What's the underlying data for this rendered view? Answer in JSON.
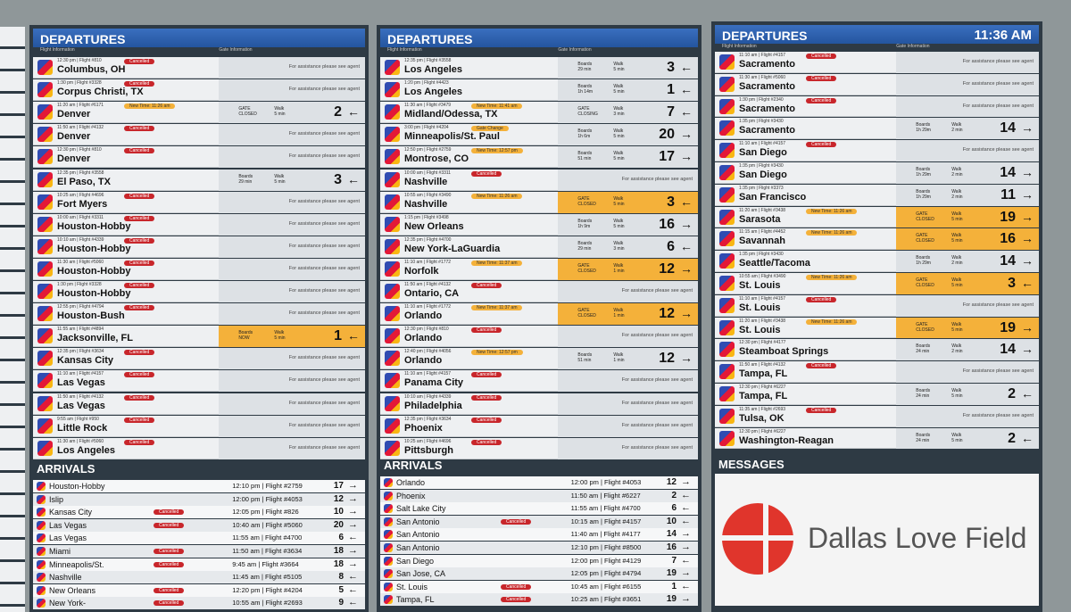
{
  "boards": [
    {
      "departures": {
        "title": "DEPARTURES",
        "flight_info_label": "Flight Information",
        "gate_info_label": "Gate Information",
        "rows": [
          {
            "t": "12:30 pm | Flight #810",
            "c": "Columbus, OH",
            "tag": "Cancelled",
            "note": "For assistance please see agent"
          },
          {
            "t": "1:30 pm | Flight #3328",
            "c": "Corpus Christi, TX",
            "tag": "Cancelled",
            "note": "For assistance please see agent"
          },
          {
            "t": "11:20 am | Flight #6171",
            "c": "Denver",
            "tag": "New Time: 11:26 am",
            "b1": "GATE",
            "b2": "CLOSED",
            "w1": "Walk",
            "w2": "5 min",
            "g": "2",
            "a": "←"
          },
          {
            "t": "11:50 am | Flight #4132",
            "c": "Denver",
            "tag": "Cancelled",
            "note": "For assistance please see agent"
          },
          {
            "t": "12:30 pm | Flight #810",
            "c": "Denver",
            "tag": "Cancelled",
            "note": "For assistance please see agent"
          },
          {
            "t": "12:35 pm | Flight #3558",
            "c": "El Paso, TX",
            "b1": "Boards",
            "b2": "29 min",
            "w1": "Walk",
            "w2": "5 min",
            "g": "3",
            "a": "←"
          },
          {
            "t": "10:25 am | Flight #4696",
            "c": "Fort Myers",
            "tag": "Cancelled",
            "note": "For assistance please see agent"
          },
          {
            "t": "10:00 am | Flight #3311",
            "c": "Houston-Hobby",
            "tag": "Cancelled",
            "note": "For assistance please see agent"
          },
          {
            "t": "10:10 am | Flight #4339",
            "c": "Houston-Hobby",
            "tag": "Cancelled",
            "note": "For assistance please see agent"
          },
          {
            "t": "11:30 am | Flight #5060",
            "c": "Houston-Hobby",
            "tag": "Cancelled",
            "note": "For assistance please see agent"
          },
          {
            "t": "1:30 pm | Flight #3328",
            "c": "Houston-Hobby",
            "tag": "Cancelled",
            "note": "For assistance please see agent"
          },
          {
            "t": "12:55 pm | Flight #4794",
            "c": "Houston-Bush",
            "tag": "Cancelled",
            "note": "For assistance please see agent"
          },
          {
            "t": "11:55 am | Flight #4894",
            "c": "Jacksonville, FL",
            "b1": "Boards",
            "b2": "NOW",
            "w1": "Walk",
            "w2": "5 min",
            "g": "1",
            "a": "←",
            "hl": true
          },
          {
            "t": "12:35 pm | Flight #3634",
            "c": "Kansas City",
            "tag": "Cancelled",
            "note": "For assistance please see agent"
          },
          {
            "t": "11:10 am | Flight #4157",
            "c": "Las Vegas",
            "tag": "Cancelled",
            "note": "For assistance please see agent"
          },
          {
            "t": "11:50 am | Flight #4132",
            "c": "Las Vegas",
            "tag": "Cancelled",
            "note": "For assistance please see agent"
          },
          {
            "t": "9:55 am | Flight #950",
            "c": "Little Rock",
            "tag": "Cancelled",
            "note": "For assistance please see agent"
          },
          {
            "t": "11:30 am | Flight #5060",
            "c": "Los Angeles",
            "tag": "Cancelled",
            "note": "For assistance please see agent"
          }
        ]
      },
      "arrivals": {
        "title": "ARRIVALS",
        "rows": [
          {
            "c": "Houston-Hobby",
            "t": "12:10 pm | Flight #2759",
            "g": "17",
            "a": "→"
          },
          {
            "c": "Islip",
            "t": "12:00 pm | Flight #4053",
            "g": "12",
            "a": "→"
          },
          {
            "c": "Kansas City",
            "tag": "Cancelled",
            "t": "12:05 pm | Flight #826",
            "g": "10",
            "a": "→"
          },
          {
            "c": "Las Vegas",
            "tag": "Cancelled",
            "t": "10:40 am | Flight #5060",
            "g": "20",
            "a": "→"
          },
          {
            "c": "Las Vegas",
            "t": "11:55 am | Flight #4700",
            "g": "6",
            "a": "←"
          },
          {
            "c": "Miami",
            "tag": "Cancelled",
            "t": "11:50 am | Flight #3634",
            "g": "18",
            "a": "→"
          },
          {
            "c": "Minneapolis/St.",
            "tag": "Cancelled",
            "t": "9:45 am | Flight #3664",
            "g": "18",
            "a": "→"
          },
          {
            "c": "Nashville",
            "t": "11:45 am | Flight #5105",
            "g": "8",
            "a": "←"
          },
          {
            "c": "New Orleans",
            "tag": "Cancelled",
            "t": "12:20 pm | Flight #4204",
            "g": "5",
            "a": "←"
          },
          {
            "c": "New York-",
            "tag": "Cancelled",
            "t": "10:55 am | Flight #2693",
            "g": "9",
            "a": "←"
          }
        ]
      }
    },
    {
      "departures": {
        "title": "DEPARTURES",
        "flight_info_label": "Flight Information",
        "gate_info_label": "Gate Information",
        "rows": [
          {
            "t": "12:35 pm | Flight #3558",
            "c": "Los Angeles",
            "b1": "Boards",
            "b2": "29 min",
            "w1": "Walk",
            "w2": "5 min",
            "g": "3",
            "a": "←"
          },
          {
            "t": "1:20 pm | Flight #4423",
            "c": "Los Angeles",
            "b1": "Boards",
            "b2": "1h 14m",
            "w1": "Walk",
            "w2": "5 min",
            "g": "1",
            "a": "←"
          },
          {
            "t": "11:30 am | Flight #3479",
            "c": "Midland/Odessa, TX",
            "tag": "New Time: 11:41 am",
            "b1": "GATE",
            "b2": "CLOSING",
            "w1": "Walk",
            "w2": "3 min",
            "g": "7",
            "a": "←"
          },
          {
            "t": "3:00 pm | Flight #4204",
            "c": "Minneapolis/St. Paul",
            "tag": "Gate Change",
            "b1": "Boards",
            "b2": "1h 6m",
            "w1": "Walk",
            "w2": "5 min",
            "g": "20",
            "a": "→"
          },
          {
            "t": "12:50 pm | Flight #2759",
            "c": "Montrose, CO",
            "tag": "New Time: 12:57 pm",
            "b1": "Boards",
            "b2": "51 min",
            "w1": "Walk",
            "w2": "5 min",
            "g": "17",
            "a": "→"
          },
          {
            "t": "10:00 am | Flight #3311",
            "c": "Nashville",
            "tag": "Cancelled",
            "note": "For assistance please see agent"
          },
          {
            "t": "10:55 am | Flight #3490",
            "c": "Nashville",
            "tag": "New Time: 11:26 am",
            "b1": "GATE",
            "b2": "CLOSED",
            "w1": "Walk",
            "w2": "5 min",
            "g": "3",
            "a": "←",
            "hl": true
          },
          {
            "t": "1:15 pm | Flight #3498",
            "c": "New Orleans",
            "b1": "Boards",
            "b2": "1h 9m",
            "w1": "Walk",
            "w2": "5 min",
            "g": "16",
            "a": "→"
          },
          {
            "t": "12:35 pm | Flight #4700",
            "c": "New York-LaGuardia",
            "b1": "Boards",
            "b2": "29 min",
            "w1": "Walk",
            "w2": "3 min",
            "g": "6",
            "a": "←"
          },
          {
            "t": "11:10 am | Flight #1772",
            "c": "Norfolk",
            "tag": "New Time: 11:37 am",
            "b1": "GATE",
            "b2": "CLOSED",
            "w1": "Walk",
            "w2": "1 min",
            "g": "12",
            "a": "→",
            "hl": true
          },
          {
            "t": "11:50 am | Flight #4132",
            "c": "Ontario, CA",
            "tag": "Cancelled",
            "note": "For assistance please see agent"
          },
          {
            "t": "11:10 am | Flight #1772",
            "c": "Orlando",
            "tag": "New Time: 11:37 am",
            "b1": "GATE",
            "b2": "CLOSED",
            "w1": "Walk",
            "w2": "1 min",
            "g": "12",
            "a": "→",
            "hl": true
          },
          {
            "t": "12:30 pm | Flight #810",
            "c": "Orlando",
            "tag": "Cancelled",
            "note": "For assistance please see agent"
          },
          {
            "t": "12:40 pm | Flight #4056",
            "c": "Orlando",
            "tag": "New Time: 12:57 pm",
            "b1": "Boards",
            "b2": "51 min",
            "w1": "Walk",
            "w2": "1 min",
            "g": "12",
            "a": "→"
          },
          {
            "t": "11:10 am | Flight #4157",
            "c": "Panama City",
            "tag": "Cancelled",
            "note": "For assistance please see agent"
          },
          {
            "t": "10:10 am | Flight #4339",
            "c": "Philadelphia",
            "tag": "Cancelled",
            "note": "For assistance please see agent"
          },
          {
            "t": "12:35 pm | Flight #3634",
            "c": "Phoenix",
            "tag": "Cancelled",
            "note": "For assistance please see agent"
          },
          {
            "t": "10:25 am | Flight #4696",
            "c": "Pittsburgh",
            "tag": "Cancelled",
            "note": "For assistance please see agent"
          }
        ]
      },
      "arrivals": {
        "title": "ARRIVALS",
        "rows": [
          {
            "c": "Orlando",
            "t": "12:00 pm | Flight #4053",
            "g": "12",
            "a": "→"
          },
          {
            "c": "Phoenix",
            "t": "11:50 am | Flight #6227",
            "g": "2",
            "a": "←"
          },
          {
            "c": "Salt Lake City",
            "t": "11:55 am | Flight #4700",
            "g": "6",
            "a": "←"
          },
          {
            "c": "San Antonio",
            "tag": "Cancelled",
            "t": "10:15 am | Flight #4157",
            "g": "10",
            "a": "←"
          },
          {
            "c": "San Antonio",
            "t": "11:40 am | Flight #4177",
            "g": "14",
            "a": "→"
          },
          {
            "c": "San Antonio",
            "t": "12:10 pm | Flight #8500",
            "g": "16",
            "a": "→"
          },
          {
            "c": "San Diego",
            "t": "12:00 pm | Flight #4129",
            "g": "7",
            "a": "←"
          },
          {
            "c": "San Jose, CA",
            "t": "12:05 pm | Flight #4794",
            "g": "19",
            "a": "→"
          },
          {
            "c": "St. Louis",
            "tag": "Cancelled",
            "t": "10:45 am | Flight #6155",
            "g": "1",
            "a": "←"
          },
          {
            "c": "Tampa, FL",
            "tag": "Cancelled",
            "t": "10:25 am | Flight #3651",
            "g": "19",
            "a": "→"
          }
        ]
      }
    },
    {
      "departures": {
        "title": "DEPARTURES",
        "clock": "11:36 AM",
        "flight_info_label": "Flight Information",
        "gate_info_label": "Gate Information",
        "rows": [
          {
            "t": "11:10 am | Flight #4157",
            "c": "Sacramento",
            "tag": "Cancelled",
            "note": "For assistance please see agent"
          },
          {
            "t": "11:30 am | Flight #5060",
            "c": "Sacramento",
            "tag": "Cancelled",
            "note": "For assistance please see agent"
          },
          {
            "t": "1:30 pm | Flight #2340",
            "c": "Sacramento",
            "tag": "Cancelled",
            "note": "For assistance please see agent"
          },
          {
            "t": "1:35 pm | Flight #3430",
            "c": "Sacramento",
            "b1": "Boards",
            "b2": "1h 29m",
            "w1": "Walk",
            "w2": "2 min",
            "g": "14",
            "a": "→"
          },
          {
            "t": "11:10 am | Flight #4157",
            "c": "San Diego",
            "tag": "Cancelled",
            "note": "For assistance please see agent"
          },
          {
            "t": "1:35 pm | Flight #3430",
            "c": "San Diego",
            "b1": "Boards",
            "b2": "1h 29m",
            "w1": "Walk",
            "w2": "2 min",
            "g": "14",
            "a": "→"
          },
          {
            "t": "1:35 pm | Flight #3373",
            "c": "San Francisco",
            "b1": "Boards",
            "b2": "1h 29m",
            "w1": "Walk",
            "w2": "2 min",
            "g": "11",
            "a": "→"
          },
          {
            "t": "11:20 am | Flight #3438",
            "c": "Sarasota",
            "tag": "New Time: 11:26 am",
            "b1": "GATE",
            "b2": "CLOSED",
            "w1": "Walk",
            "w2": "5 min",
            "g": "19",
            "a": "→",
            "hl": true
          },
          {
            "t": "11:15 am | Flight #4452",
            "c": "Savannah",
            "tag": "New Time: 11:26 am",
            "b1": "GATE",
            "b2": "CLOSED",
            "w1": "Walk",
            "w2": "5 min",
            "g": "16",
            "a": "→",
            "hl": true
          },
          {
            "t": "1:35 pm | Flight #3430",
            "c": "Seattle/Tacoma",
            "b1": "Boards",
            "b2": "1h 29m",
            "w1": "Walk",
            "w2": "2 min",
            "g": "14",
            "a": "→"
          },
          {
            "t": "10:55 am | Flight #3490",
            "c": "St. Louis",
            "tag": "New Time: 11:26 am",
            "b1": "GATE",
            "b2": "CLOSED",
            "w1": "Walk",
            "w2": "5 min",
            "g": "3",
            "a": "←",
            "hl": true
          },
          {
            "t": "11:10 am | Flight #4157",
            "c": "St. Louis",
            "tag": "Cancelled",
            "note": "For assistance please see agent"
          },
          {
            "t": "11:20 am | Flight #3438",
            "c": "St. Louis",
            "tag": "New Time: 11:26 am",
            "b1": "GATE",
            "b2": "CLOSED",
            "w1": "Walk",
            "w2": "5 min",
            "g": "19",
            "a": "→",
            "hl": true
          },
          {
            "t": "12:30 pm | Flight #4177",
            "c": "Steamboat Springs",
            "b1": "Boards",
            "b2": "24 min",
            "w1": "Walk",
            "w2": "2 min",
            "g": "14",
            "a": "→"
          },
          {
            "t": "11:50 am | Flight #4132",
            "c": "Tampa, FL",
            "tag": "Cancelled",
            "note": "For assistance please see agent"
          },
          {
            "t": "12:30 pm | Flight #6227",
            "c": "Tampa, FL",
            "b1": "Boards",
            "b2": "24 min",
            "w1": "Walk",
            "w2": "5 min",
            "g": "2",
            "a": "←"
          },
          {
            "t": "11:35 am | Flight #2693",
            "c": "Tulsa, OK",
            "tag": "Cancelled",
            "note": "For assistance please see agent"
          },
          {
            "t": "12:30 pm | Flight #6227",
            "c": "Washington-Reagan",
            "b1": "Boards",
            "b2": "24 min",
            "w1": "Walk",
            "w2": "5 min",
            "g": "2",
            "a": "←"
          }
        ]
      },
      "messages": {
        "title": "MESSAGES",
        "text": "Dallas Love Field"
      }
    }
  ]
}
